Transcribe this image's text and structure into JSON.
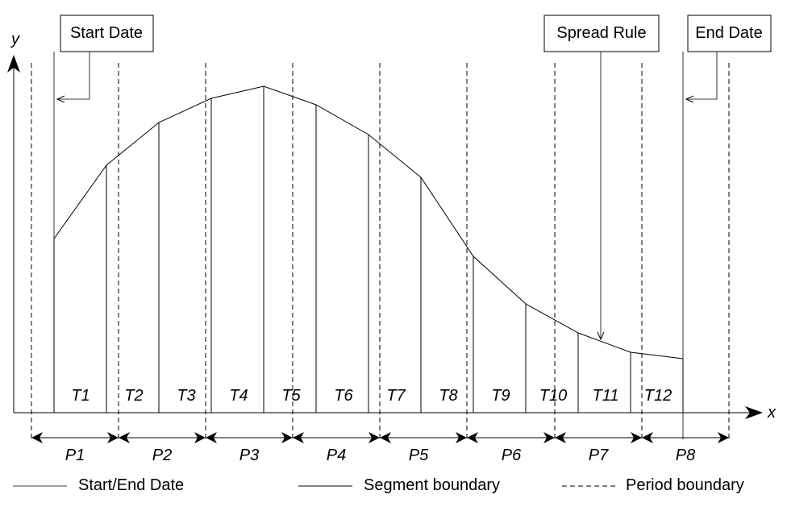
{
  "axes": {
    "y_label": "y",
    "x_label": "x"
  },
  "boxes": {
    "start": "Start Date",
    "spread": "Spread Rule",
    "end": "End Date"
  },
  "segments": [
    "T1",
    "T2",
    "T3",
    "T4",
    "T5",
    "T6",
    "T7",
    "T8",
    "T9",
    "T10",
    "T11",
    "T12"
  ],
  "periods": [
    "P1",
    "P2",
    "P3",
    "P4",
    "P5",
    "P6",
    "P7",
    "P8"
  ],
  "legend": {
    "start_end": "Start/End Date",
    "segment": "Segment boundary",
    "period": "Period boundary"
  }
}
